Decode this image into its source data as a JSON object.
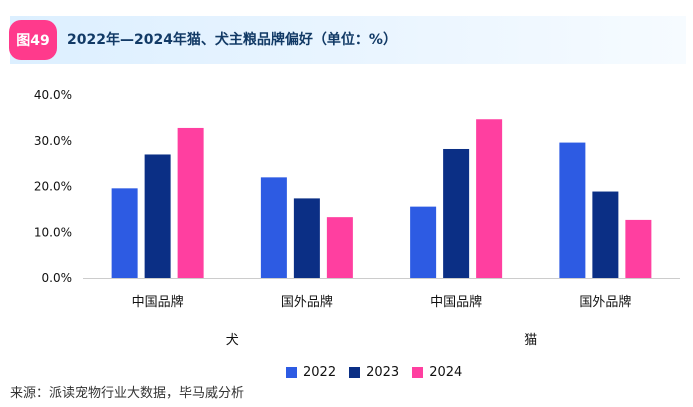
{
  "header": {
    "badge": "图49",
    "title": "2022年—2024年猫、犬主粮品牌偏好（单位：%）"
  },
  "colors": {
    "2022": "#2d5be3",
    "2023": "#0b2f85",
    "2024": "#ff3fa0",
    "badge": "#ff3a8c",
    "title": "#123a66"
  },
  "chart_data": {
    "type": "bar",
    "title": "2022年—2024年猫、犬主粮品牌偏好（单位：%）",
    "groups": [
      {
        "label": "犬",
        "categories": [
          "中国品牌",
          "国外品牌"
        ]
      },
      {
        "label": "猫",
        "categories": [
          "中国品牌",
          "国外品牌"
        ]
      }
    ],
    "categories": [
      "中国品牌",
      "国外品牌",
      "中国品牌",
      "国外品牌"
    ],
    "series": [
      {
        "name": "2022",
        "values": [
          19.6,
          22.0,
          15.6,
          29.6
        ]
      },
      {
        "name": "2023",
        "values": [
          27.0,
          17.4,
          28.2,
          18.9
        ]
      },
      {
        "name": "2024",
        "values": [
          32.8,
          13.3,
          34.7,
          12.7
        ]
      }
    ],
    "ylim": [
      0,
      40
    ],
    "yticks": [
      "0.0%",
      "10.0%",
      "20.0%",
      "30.0%",
      "40.0%"
    ],
    "grid": false,
    "legend_position": "bottom"
  },
  "legend": [
    "2022",
    "2023",
    "2024"
  ],
  "source": "来源：派读宠物行业大数据，毕马威分析"
}
